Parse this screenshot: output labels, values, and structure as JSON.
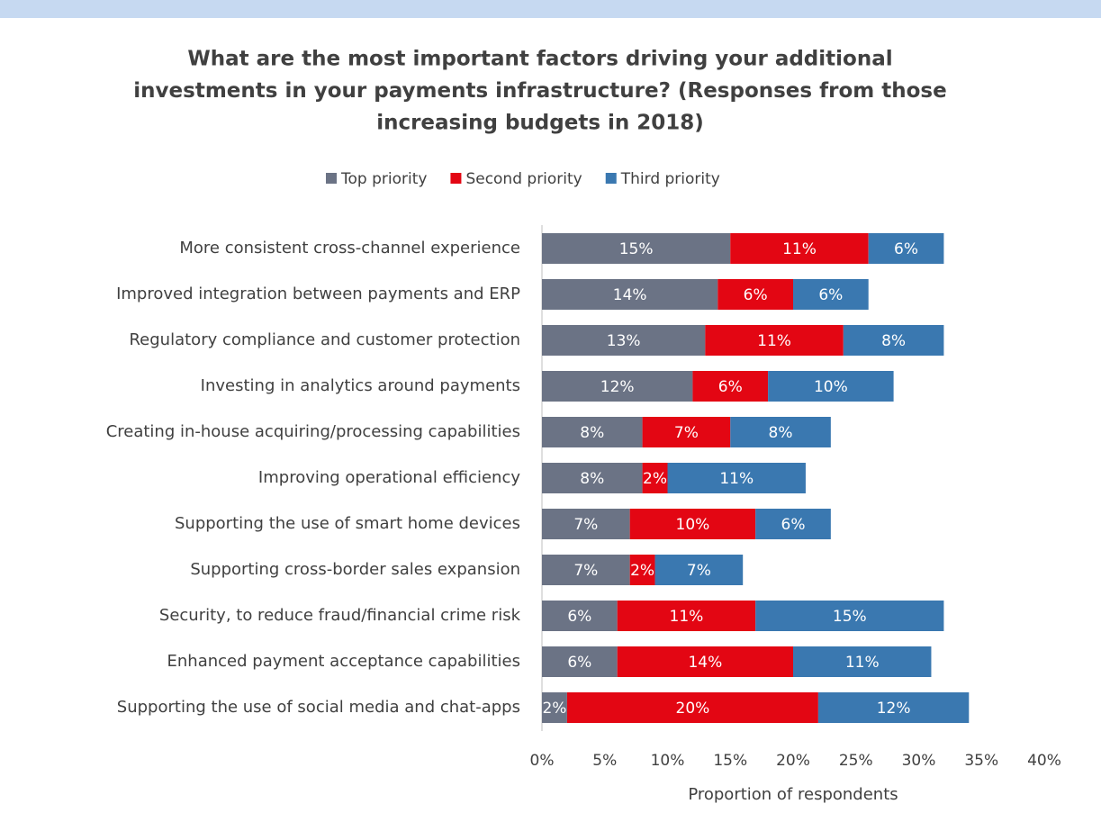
{
  "chart_data": {
    "type": "stacked-barh",
    "title": [
      "What are the most important factors driving your additional",
      "investments in your payments infrastructure? (Responses from those",
      "increasing budgets in 2018)"
    ],
    "categories": [
      "More consistent cross-channel experience",
      "Improved integration between payments and ERP",
      "Regulatory compliance and customer protection",
      "Investing in analytics around payments",
      "Creating in-house acquiring/processing capabilities",
      "Improving operational efficiency",
      "Supporting the use of smart home devices",
      "Supporting cross-border sales expansion",
      "Security, to reduce fraud/financial crime risk",
      "Enhanced payment acceptance capabilities",
      "Supporting the use of social media and chat-apps"
    ],
    "series": [
      {
        "name": "Top priority",
        "color": "#6b7385",
        "values": [
          15,
          14,
          13,
          12,
          8,
          8,
          7,
          7,
          6,
          6,
          2
        ],
        "value_labels": [
          "15%",
          "14%",
          "13%",
          "12%",
          "8%",
          "8%",
          "7%",
          "7%",
          "6%",
          "6%",
          "2%"
        ]
      },
      {
        "name": "Second priority",
        "color": "#e30613",
        "values": [
          11,
          6,
          11,
          6,
          7,
          2,
          10,
          2,
          11,
          14,
          20
        ],
        "value_labels": [
          "11%",
          "6%",
          "11%",
          "6%",
          "7%",
          "2%",
          "10%",
          "2%",
          "11%",
          "14%",
          "20%"
        ]
      },
      {
        "name": "Third priority",
        "color": "#3a78b0",
        "values": [
          6,
          6,
          8,
          10,
          8,
          11,
          6,
          7,
          15,
          11,
          12
        ],
        "value_labels": [
          "6%",
          "6%",
          "8%",
          "10%",
          "8%",
          "11%",
          "6%",
          "7%",
          "15%",
          "11%",
          "12%"
        ]
      }
    ],
    "xlim": [
      0,
      40
    ],
    "xticks": [
      {
        "value": 0,
        "label": "0%"
      },
      {
        "value": 5,
        "label": "5%"
      },
      {
        "value": 10,
        "label": "10%"
      },
      {
        "value": 15,
        "label": "15%"
      },
      {
        "value": 20,
        "label": "20%"
      },
      {
        "value": 25,
        "label": "25%"
      },
      {
        "value": 30,
        "label": "30%"
      },
      {
        "value": 35,
        "label": "35%"
      },
      {
        "value": 40,
        "label": "40%"
      }
    ],
    "xlabel": "Proportion of respondents",
    "legend": "top"
  }
}
